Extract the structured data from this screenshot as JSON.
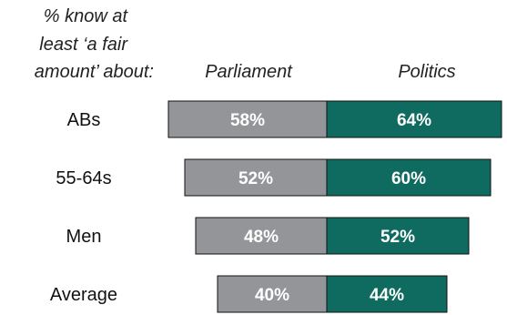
{
  "chart_data": {
    "type": "bar",
    "title": "",
    "orientation": "horizontal-diverging",
    "header": {
      "row_label_title_lines": [
        "% know at",
        "least ‘a fair",
        "amount’ about:"
      ],
      "left_series_header": "Parliament",
      "right_series_header": "Politics"
    },
    "categories": [
      "ABs",
      "55-64s",
      "Men",
      "Average"
    ],
    "series": [
      {
        "name": "Parliament",
        "values": [
          58,
          52,
          48,
          40
        ],
        "labels": [
          "58%",
          "52%",
          "48%",
          "40%"
        ],
        "color": "#939598"
      },
      {
        "name": "Politics",
        "values": [
          64,
          60,
          52,
          44
        ],
        "labels": [
          "64%",
          "60%",
          "52%",
          "44%"
        ],
        "color": "#0f6b5f"
      }
    ],
    "grid": false,
    "legend": "none"
  }
}
